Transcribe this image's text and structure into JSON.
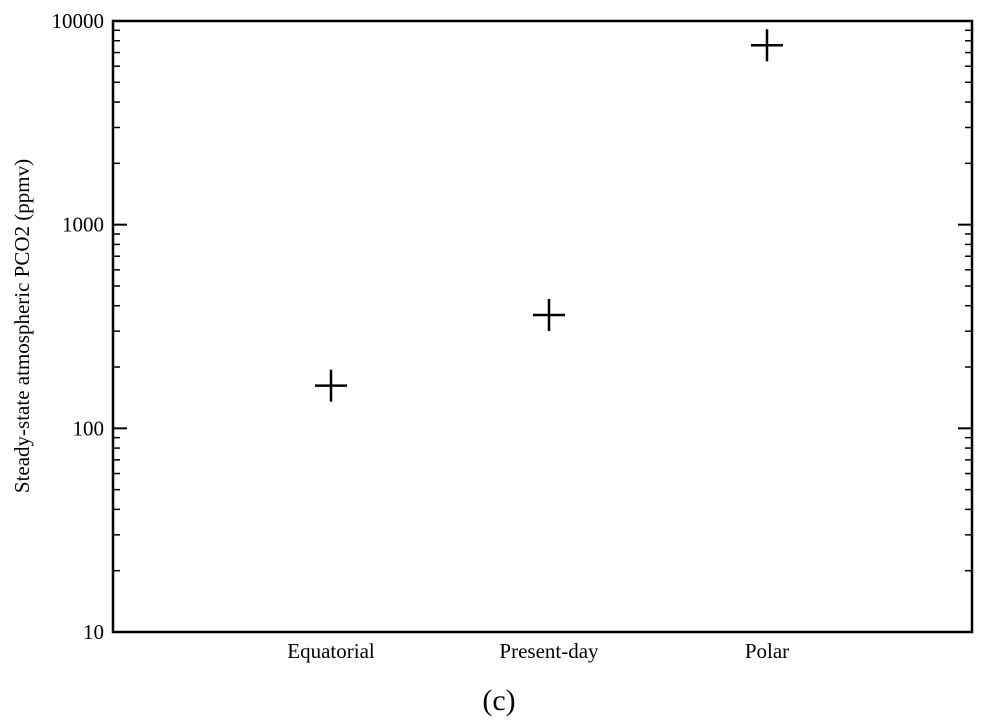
{
  "chart_data": {
    "type": "scatter",
    "categories": [
      "Equatorial",
      "Present-day",
      "Polar"
    ],
    "values": [
      162,
      360,
      7600
    ],
    "ylabel": "Steady-state atmospheric PCO2 (ppmv)",
    "xlabel": "",
    "yscale": "log",
    "ylim": [
      10,
      10000
    ],
    "yticks": [
      {
        "value": 10,
        "label": "10"
      },
      {
        "value": 100,
        "label": "100"
      },
      {
        "value": 1000,
        "label": "1000"
      },
      {
        "value": 10000,
        "label": "10000"
      }
    ],
    "marker": "plus",
    "grid": false,
    "panel_label": "(c)",
    "colors": {
      "ink": "#000000",
      "background": "#ffffff"
    }
  }
}
